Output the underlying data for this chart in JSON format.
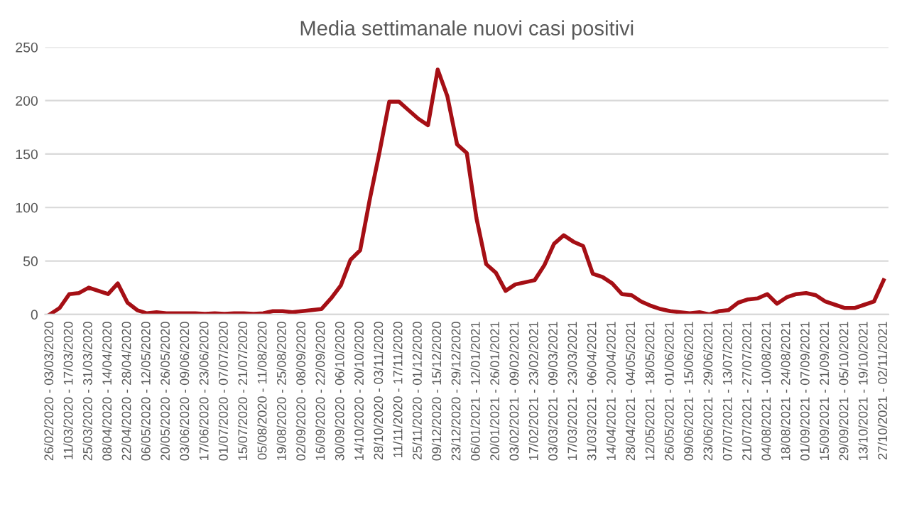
{
  "chart_data": {
    "type": "line",
    "title": "Media settimanale nuovi casi positivi",
    "categories": [
      "26/02/2020 - 03/03/2020",
      null,
      "11/03/2020 - 17/03/2020",
      null,
      "25/03/2020 - 31/03/2020",
      null,
      "08/04/2020 - 14/04/2020",
      null,
      "22/04/2020 - 28/04/2020",
      null,
      "06/05/2020 - 12/05/2020",
      null,
      "20/05/2020 - 26/05/2020",
      null,
      "03/06/2020 - 09/06/2020",
      null,
      "17/06/2020 - 23/06/2020",
      null,
      "01/07/2020 - 07/07/2020",
      null,
      "15/07/2020 - 21/07/2020",
      null,
      "05/08/2020 - 11/08/2020",
      null,
      "19/08/2020 - 25/08/2020",
      null,
      "02/09/2020 - 08/09/2020",
      null,
      "16/09/2020 - 22/09/2020",
      null,
      "30/09/2020 - 06/10/2020",
      null,
      "14/10/2020 - 20/10/2020",
      null,
      "28/10/2020 - 03/11/2020",
      null,
      "11/11/2020 - 17/11/2020",
      null,
      "25/11/2020 - 01/12/2020",
      null,
      "09/12/2020 - 15/12/2020",
      null,
      "23/12/2020 - 29/12/2020",
      null,
      "06/01/2021 - 12/01/2021",
      null,
      "20/01/2021 - 26/01/2021",
      null,
      "03/02/2021 - 09/02/2021",
      null,
      "17/02/2021 - 23/02/2021",
      null,
      "03/03/2021 - 09/03/2021",
      null,
      "17/03/2021 - 23/03/2021",
      null,
      "31/03/2021 - 06/04/2021",
      null,
      "14/04/2021 - 20/04/2021",
      null,
      "28/04/2021 - 04/05/2021",
      null,
      "12/05/2021 - 18/05/2021",
      null,
      "26/05/2021 - 01/06/2021",
      null,
      "09/06/2021 - 15/06/2021",
      null,
      "23/06/2021 - 29/06/2021",
      null,
      "07/07/2021 - 13/07/2021",
      null,
      "21/07/2021 - 27/07/2021",
      null,
      "04/08/2021 - 10/08/2021",
      null,
      "18/08/2021 - 24/08/2021",
      null,
      "01/09/2021 - 07/09/2021",
      null,
      "15/09/2021 - 21/09/2021",
      null,
      "29/09/2021 - 05/10/2021",
      null,
      "13/10/2021 - 19/10/2021",
      null,
      "27/10/2021 - 02/11/2021"
    ],
    "series": [
      {
        "color": "#a50f15",
        "values": [
          0,
          6,
          19,
          20,
          25,
          22,
          19,
          29,
          11,
          4,
          1,
          2,
          1,
          1,
          1,
          1,
          0.5,
          1,
          0.5,
          1,
          1,
          0.5,
          1,
          3,
          3,
          2,
          3,
          4,
          5,
          15,
          27,
          51,
          60,
          108,
          152,
          199,
          199,
          191,
          183,
          177,
          229,
          204,
          159,
          151,
          90,
          47,
          39,
          22,
          28,
          30,
          32,
          46,
          66,
          74,
          68,
          64,
          38,
          35,
          29,
          19,
          18,
          12,
          8,
          5,
          3,
          2,
          1,
          2,
          0,
          3,
          4,
          11,
          14,
          15,
          19,
          10,
          16,
          19,
          20,
          18,
          12,
          9,
          6,
          6,
          9,
          12,
          32
        ]
      }
    ],
    "ylim": [
      0,
      250
    ],
    "yticks": [
      0,
      50,
      100,
      150,
      200,
      250
    ],
    "grid": "y",
    "legend": false,
    "marker": "none",
    "line_style": "solid"
  }
}
